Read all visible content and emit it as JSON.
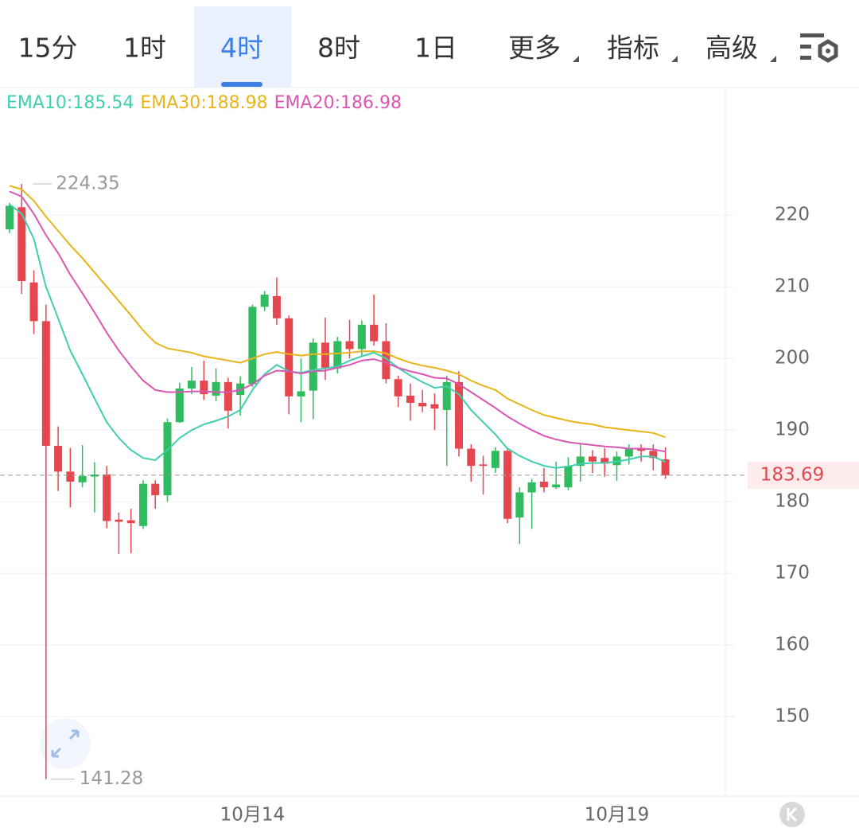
{
  "tabs": [
    "15分",
    "1时",
    "4时",
    "8时",
    "1日",
    "更多",
    "指标",
    "高级"
  ],
  "selected_tab": 2,
  "chart_data": {
    "type": "candlestick",
    "categories": [
      null,
      null,
      null,
      null,
      null,
      null,
      null,
      null,
      null,
      null,
      null,
      null,
      null,
      null,
      null,
      null,
      null,
      null,
      null,
      null,
      "10月14",
      null,
      null,
      null,
      null,
      null,
      null,
      null,
      null,
      null,
      null,
      null,
      null,
      null,
      null,
      null,
      null,
      null,
      null,
      null,
      null,
      null,
      null,
      null,
      null,
      null,
      null,
      null,
      null,
      null,
      "10月19",
      null,
      null,
      null,
      null
    ],
    "open": [
      218,
      221.1,
      210.6,
      205.2,
      187.8,
      184.2,
      182.7,
      183.5,
      183.8,
      177.5,
      177.4,
      176.6,
      182.5,
      180.9,
      191.1,
      195.8,
      196.9,
      194.8,
      196.7,
      194.9,
      196.4,
      207.2,
      208.7,
      205.6,
      194.7,
      195.5,
      202.2,
      198.6,
      202.4,
      201.3,
      204.7,
      202.4,
      197.1,
      194.8,
      193.8,
      193.6,
      192.8,
      196.7,
      187.4,
      185.2,
      184.7,
      187.1,
      177.8,
      181.3,
      182.8,
      182,
      182,
      185,
      186.3,
      186.1,
      185.1,
      186.3,
      187.5,
      187.1,
      185.9
    ],
    "high": [
      221.7,
      224.35,
      212.3,
      207.5,
      190.5,
      187.5,
      187.9,
      185.5,
      185,
      178.5,
      179,
      183,
      183,
      191.6,
      196.6,
      198.8,
      199.7,
      198.6,
      197.3,
      197.5,
      207.5,
      209.4,
      211.3,
      206,
      200,
      202.8,
      205.7,
      203,
      205.4,
      205.3,
      208.9,
      204.9,
      197.6,
      196.5,
      195.6,
      195.1,
      197.6,
      198.2,
      188,
      186.4,
      187.6,
      187.5,
      182,
      183.2,
      184.7,
      185.6,
      186.2,
      188,
      187.2,
      187.5,
      187,
      188,
      188,
      188,
      187.6
    ],
    "low": [
      217.5,
      209,
      203.4,
      141.28,
      181.5,
      179.2,
      182,
      178.5,
      176.3,
      172.7,
      172.8,
      176.2,
      179,
      180,
      191,
      195,
      194.2,
      194,
      190.2,
      192,
      196,
      206.6,
      204.7,
      192.2,
      191.1,
      191.5,
      197,
      197.9,
      200,
      200.2,
      201.8,
      196.5,
      193.2,
      191.3,
      192.5,
      190,
      185,
      186.3,
      182.8,
      181,
      184,
      177,
      174.1,
      176.2,
      181.3,
      181.8,
      181.6,
      182.8,
      184,
      183.5,
      182.9,
      185.2,
      185.6,
      184.4,
      183.2
    ],
    "close": [
      221.3,
      210.8,
      205.2,
      187.8,
      184.2,
      182.8,
      183.6,
      183.8,
      177.3,
      177.2,
      177,
      182.5,
      180.9,
      191.1,
      195.8,
      196.9,
      195,
      196.7,
      192.7,
      196.5,
      207.2,
      208.9,
      205.6,
      194.7,
      195.4,
      202.2,
      198.7,
      202.4,
      201.3,
      204.7,
      202.4,
      197.1,
      194.7,
      193.8,
      193.3,
      193,
      196.7,
      187.4,
      185,
      185,
      187.1,
      177.6,
      181.3,
      182.7,
      182,
      182.4,
      185,
      186.3,
      185.6,
      185.3,
      186.3,
      187.4,
      187.1,
      186.1,
      183.69
    ],
    "up_color": "#2fbb5e",
    "down_color": "#e5474f",
    "series": [
      {
        "name": "EMA10",
        "label": "EMA10:185.54",
        "color": "#3fcfae",
        "values": [
          221.5,
          220.2,
          216.7,
          210,
          205.6,
          201.1,
          197.8,
          194.4,
          191.1,
          188.9,
          187.2,
          186.1,
          185.8,
          187.2,
          188.9,
          190,
          190.8,
          191.3,
          191.9,
          192.8,
          195.6,
          197.8,
          199.1,
          198.2,
          198,
          198.4,
          198.6,
          198.9,
          199.7,
          200.3,
          200.8,
          200,
          198.7,
          197.6,
          196.7,
          195.9,
          196.1,
          195,
          192.8,
          191.1,
          189.4,
          187.4,
          186.4,
          185.6,
          185,
          184.7,
          184.9,
          185.3,
          185.4,
          185.4,
          185.6,
          185.9,
          186.3,
          186.3,
          185.54
        ]
      },
      {
        "name": "EMA30",
        "label": "EMA30:188.98",
        "color": "#e9b418",
        "values": [
          224.1,
          223.6,
          222,
          219.8,
          217.8,
          215.8,
          214,
          212,
          210,
          208,
          206,
          203.9,
          202.2,
          201.4,
          201.1,
          200.8,
          200.3,
          200,
          199.7,
          199.4,
          200,
          200.6,
          200.9,
          200.6,
          200.4,
          200.6,
          200.6,
          200.7,
          200.8,
          201,
          201,
          200.7,
          200,
          199.4,
          199,
          198.7,
          198.3,
          197.8,
          196.9,
          196.2,
          195.6,
          194.4,
          193.6,
          192.8,
          192.1,
          191.7,
          191.3,
          191,
          190.8,
          190.4,
          190.2,
          190,
          189.8,
          189.6,
          188.98
        ]
      },
      {
        "name": "EMA20",
        "label": "EMA20:186.98",
        "color": "#d957b2",
        "values": [
          223.3,
          222.6,
          220.2,
          217.2,
          214.7,
          211.7,
          209.1,
          206.4,
          203.6,
          201.1,
          198.9,
          196.9,
          195.6,
          195.3,
          195.3,
          195.4,
          195.4,
          195.3,
          195.3,
          195.6,
          196.4,
          197.6,
          198.3,
          198.2,
          197.9,
          198.2,
          198.3,
          198.7,
          199.1,
          199.7,
          199.9,
          199.4,
          198.7,
          198.2,
          197.8,
          197.3,
          197.2,
          196.4,
          195.3,
          194.2,
          193.1,
          191.9,
          190.9,
          190,
          189.2,
          188.7,
          188.3,
          188.1,
          187.9,
          187.7,
          187.6,
          187.4,
          187.4,
          187.3,
          186.98
        ]
      }
    ],
    "high_label": 224.35,
    "low_label": 141.28,
    "last_price": 183.69,
    "ylim": [
      138.9,
      237.8
    ],
    "yticks": [
      150,
      160,
      170,
      180,
      190,
      200,
      210,
      220
    ],
    "grid": true
  }
}
